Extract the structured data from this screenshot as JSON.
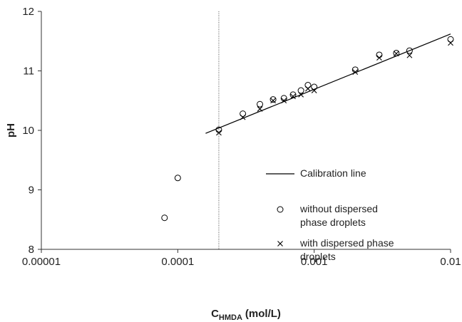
{
  "chart_data": {
    "type": "scatter",
    "xlabel": {
      "main": "C",
      "sub": "HMDA",
      "unit": "(mol/L)"
    },
    "ylabel": "pH",
    "xscale": "log",
    "xlim": [
      1e-05,
      0.01
    ],
    "xticks": [
      1e-05,
      0.0001,
      0.001,
      0.01
    ],
    "ylim": [
      8,
      12
    ],
    "yticks": [
      8,
      9,
      10,
      11,
      12
    ],
    "reference_x": 0.0002,
    "series": [
      {
        "name": "Calibration line",
        "marker": "line",
        "color": "#000000",
        "x": [
          0.00016,
          0.01
        ],
        "values": [
          9.95,
          11.62
        ]
      },
      {
        "name": "without dispersed phase droplets",
        "marker": "circle",
        "color": "#000000",
        "x": [
          8e-05,
          0.0001,
          0.0002,
          0.0003,
          0.0004,
          0.0005,
          0.0006,
          0.0007,
          0.0008,
          0.0009,
          0.001,
          0.002,
          0.003,
          0.004,
          0.005,
          0.01
        ],
        "values": [
          8.53,
          9.2,
          10.01,
          10.28,
          10.44,
          10.52,
          10.54,
          10.6,
          10.67,
          10.76,
          10.73,
          11.02,
          11.27,
          11.3,
          11.34,
          11.53
        ]
      },
      {
        "name": "with dispersed phase droplets",
        "marker": "cross",
        "color": "#000000",
        "x": [
          0.0002,
          0.0003,
          0.0004,
          0.0005,
          0.0006,
          0.0007,
          0.0008,
          0.0009,
          0.001,
          0.002,
          0.003,
          0.004,
          0.005,
          0.01
        ],
        "values": [
          9.96,
          10.22,
          10.36,
          10.5,
          10.5,
          10.57,
          10.6,
          10.7,
          10.67,
          10.98,
          11.22,
          11.29,
          11.26,
          11.47
        ]
      }
    ]
  }
}
